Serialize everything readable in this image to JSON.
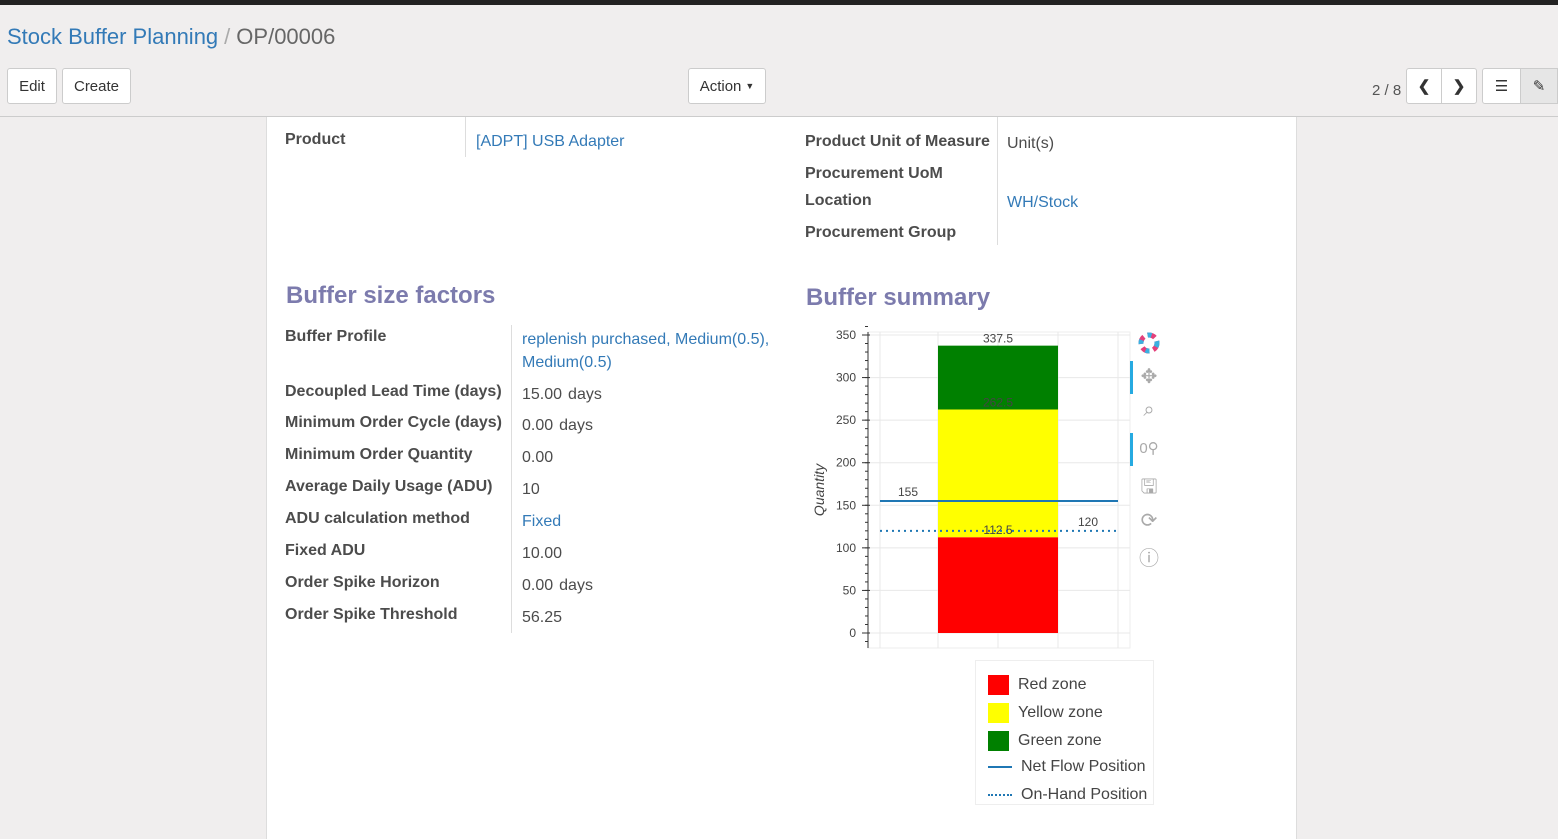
{
  "breadcrumb": {
    "parent": "Stock Buffer Planning",
    "current": "OP/00006"
  },
  "toolbar": {
    "edit": "Edit",
    "create": "Create",
    "action": "Action",
    "pager": "2 / 8"
  },
  "form": {
    "product_label": "Product",
    "product_value": "[ADPT] USB Adapter",
    "uom_label": "Product Unit of Measure",
    "uom_value": "Unit(s)",
    "proc_uom_label": "Procurement UoM",
    "location_label": "Location",
    "location_value": "WH/Stock",
    "proc_group_label": "Procurement Group"
  },
  "factors": {
    "title": "Buffer size factors",
    "rows": [
      {
        "label": "Buffer Profile",
        "value": "replenish purchased, Medium(0.5),",
        "value2": "Medium(0.5)",
        "unit": ""
      },
      {
        "label": "Decoupled Lead Time (days)",
        "value": "15.00",
        "unit": "days"
      },
      {
        "label": "Minimum Order Cycle (days)",
        "value": "0.00",
        "unit": "days"
      },
      {
        "label": "Minimum Order Quantity",
        "value": "0.00",
        "unit": ""
      },
      {
        "label": "Average Daily Usage (ADU)",
        "value": "10",
        "unit": ""
      },
      {
        "label": "ADU calculation method",
        "value": "Fixed",
        "unit": ""
      },
      {
        "label": "Fixed ADU",
        "value": "10.00",
        "unit": ""
      },
      {
        "label": "Order Spike Horizon",
        "value": "0.00",
        "unit": "days"
      },
      {
        "label": "Order Spike Threshold",
        "value": "56.25",
        "unit": ""
      }
    ]
  },
  "summary": {
    "title": "Buffer summary"
  },
  "chart_data": {
    "type": "bar",
    "ylabel": "Quantity",
    "ylim": [
      -10,
      362
    ],
    "yticks": [
      "0",
      "50",
      "100",
      "150",
      "200",
      "250",
      "300",
      "350"
    ],
    "stacked_zones": [
      {
        "name": "Red zone",
        "from": 0,
        "to": 112.5,
        "color": "#ff0000",
        "label": "112.5"
      },
      {
        "name": "Yellow zone",
        "from": 112.5,
        "to": 262.5,
        "color": "#ffff00",
        "label": "262.5"
      },
      {
        "name": "Green zone",
        "from": 262.5,
        "to": 337.5,
        "color": "#008000",
        "label": "337.5"
      }
    ],
    "lines": [
      {
        "name": "Net Flow Position",
        "value": 155,
        "label": "155",
        "style": "solid",
        "color": "#1f77b4"
      },
      {
        "name": "On-Hand Position",
        "value": 120,
        "label": "120",
        "style": "dotted",
        "color": "#1f77b4"
      }
    ],
    "legend": [
      "Red zone",
      "Yellow zone",
      "Green zone",
      "Net Flow Position",
      "On-Hand Position"
    ],
    "grid": true
  }
}
